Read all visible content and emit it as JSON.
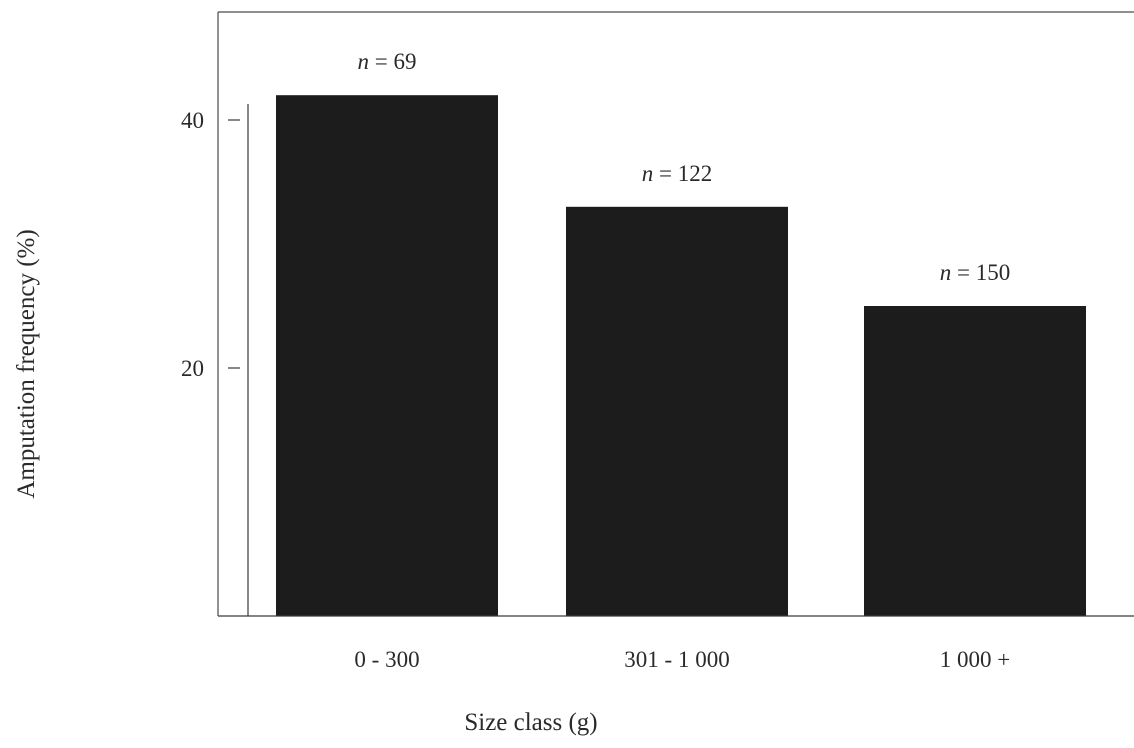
{
  "chart_data": {
    "type": "bar",
    "categories": [
      "0 - 300",
      "301 - 1 000",
      "1 000 +"
    ],
    "values": [
      42,
      33,
      25
    ],
    "data_labels": [
      "n = 69",
      "n = 122",
      "n = 150"
    ],
    "xlabel": "Size class (g)",
    "ylabel": "Amputation frequency (%)",
    "ylim": [
      0,
      50
    ],
    "yticks": [
      20,
      40
    ],
    "grid": false,
    "legend": "none",
    "colors": {
      "bar": "#1c1c1c",
      "axis": "#3a3a3a",
      "text": "#2a2a2a"
    }
  }
}
